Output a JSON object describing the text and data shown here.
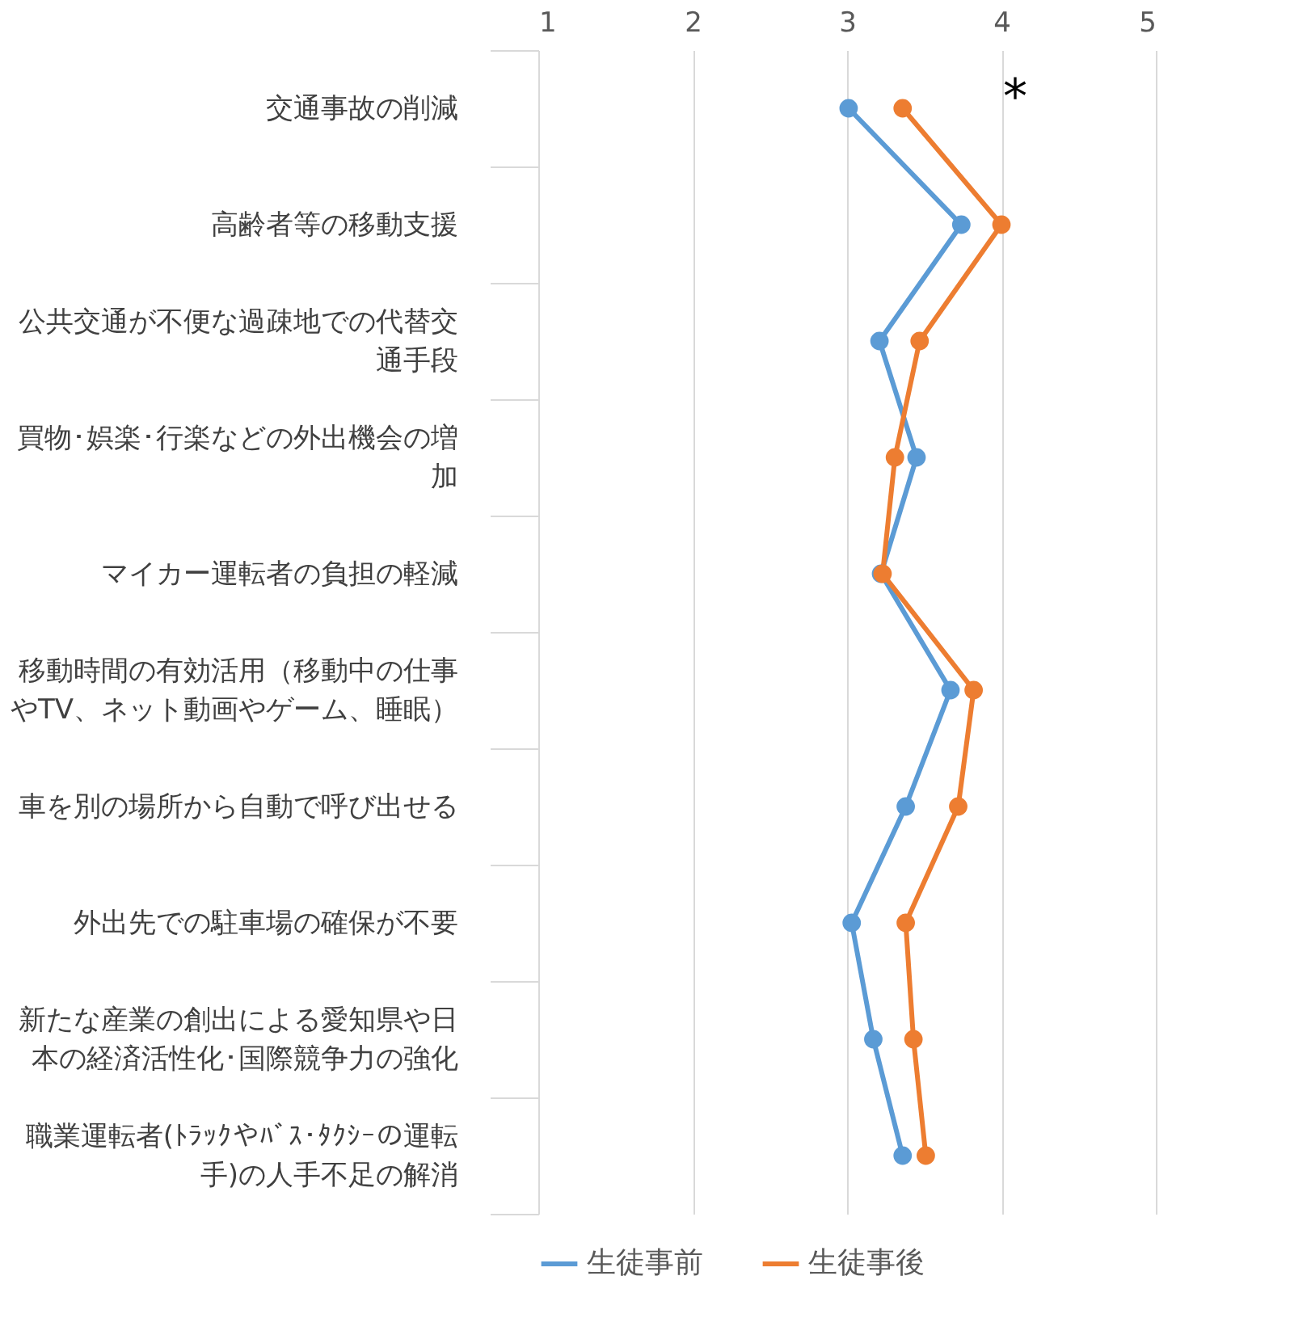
{
  "chart_data": {
    "type": "line",
    "categories": [
      "交通事故の削減",
      "高齢者等の移動支援",
      "公共交通が不便な過疎地での代替交通手段",
      "買物･娯楽･行楽などの外出機会の増加",
      "マイカー運転者の負担の軽減",
      "移動時間の有効活用（移動中の仕事やTV、ネット動画やゲーム、睡眠）",
      "車を別の場所から自動で呼び出せる",
      "外出先での駐車場の確保が不要",
      "新たな産業の創出による愛知県や日本の経済活性化･国際競争力の強化",
      "職業運転者(ﾄﾗｯｸやﾊﾞｽ･ﾀｸｼｰの運転手)の人手不足の解消"
    ],
    "orientation": "horizontal",
    "series": [
      {
        "name": "生徒事前",
        "color": "#5b9bd5",
        "values": [
          3.01,
          3.74,
          3.21,
          3.45,
          3.22,
          3.67,
          3.38,
          3.03,
          3.17,
          3.36
        ]
      },
      {
        "name": "生徒事後",
        "color": "#ed7d31",
        "values": [
          3.36,
          4.0,
          3.47,
          3.31,
          3.23,
          3.82,
          3.72,
          3.38,
          3.43,
          3.51
        ]
      }
    ],
    "xlim": [
      1,
      5
    ],
    "xticks": [
      1,
      2,
      3,
      4,
      5
    ],
    "grid": "x",
    "legend": "bottom",
    "marker": "circle",
    "line_style": "solid",
    "annotations": [
      "*"
    ]
  }
}
